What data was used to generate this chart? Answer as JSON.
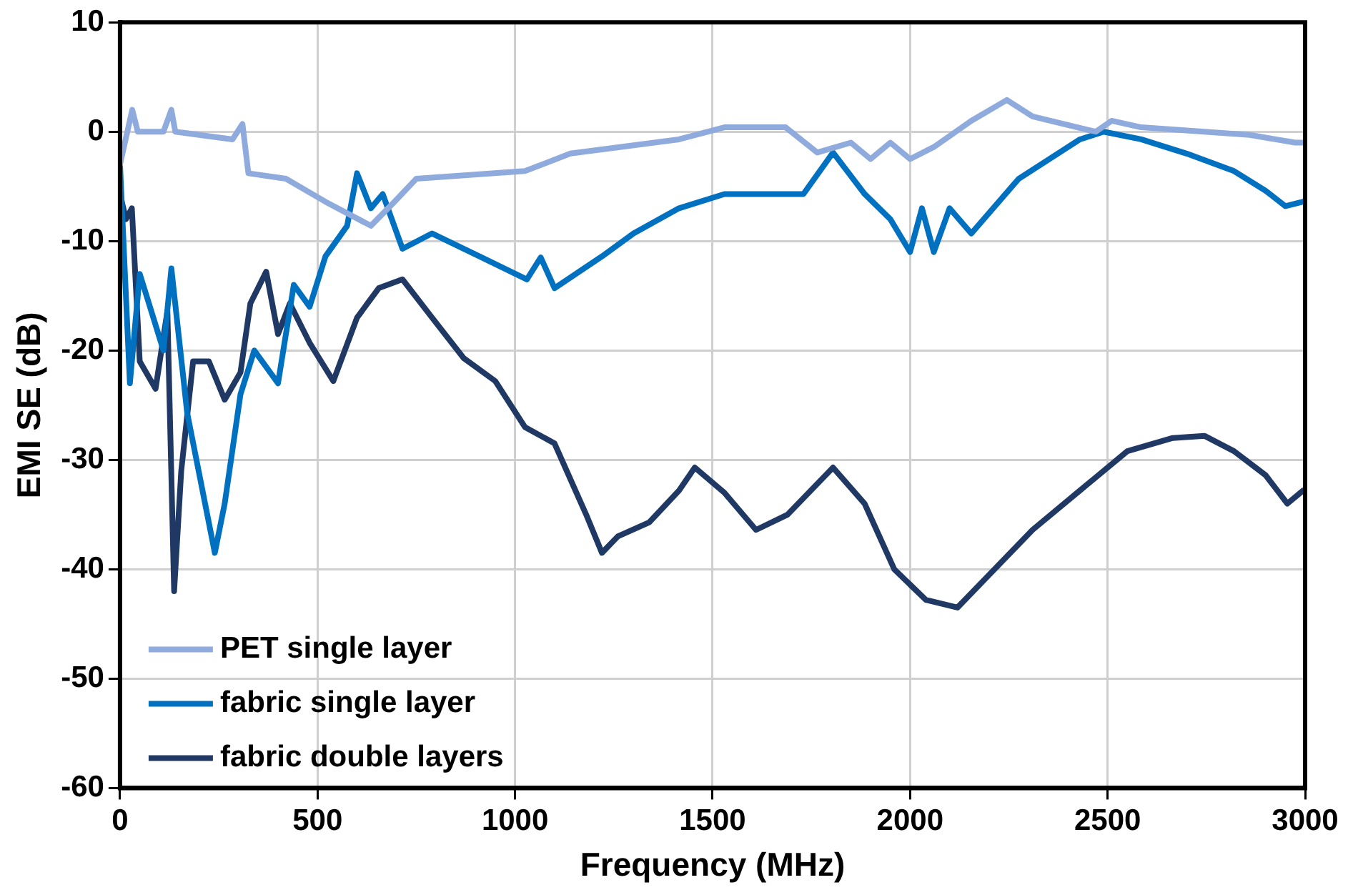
{
  "chart_data": {
    "type": "line",
    "xlabel": "Frequency (MHz)",
    "ylabel": "EMI SE (dB)",
    "xlim": [
      0,
      3000
    ],
    "xticks": [
      0,
      500,
      1000,
      1500,
      2000,
      2500,
      3000
    ],
    "ylim": [
      -60,
      10
    ],
    "yticks": [
      -60,
      -50,
      -40,
      -30,
      -20,
      -10,
      0,
      10
    ],
    "grid": true,
    "legend": "bottom left",
    "marker": "none",
    "line_style": "solid",
    "series": [
      {
        "name": "PET single layer",
        "color": "#8faadc",
        "x": [
          0,
          31,
          45,
          110,
          130,
          140,
          285,
          310,
          325,
          420,
          520,
          635,
          695,
          750,
          1025,
          1140,
          1415,
          1530,
          1685,
          1765,
          1850,
          1900,
          1950,
          2000,
          2060,
          2155,
          2245,
          2310,
          2470,
          2510,
          2585,
          2860,
          2975,
          3000
        ],
        "values": [
          -3,
          2,
          0,
          0,
          2,
          0,
          -0.7,
          0.7,
          -3.8,
          -4.3,
          -6.4,
          -8.6,
          -6.4,
          -4.3,
          -3.6,
          -2,
          -0.7,
          0.4,
          0.4,
          -1.9,
          -1,
          -2.5,
          -1,
          -2.5,
          -1.4,
          1,
          2.9,
          1.4,
          0,
          1,
          0.4,
          -0.3,
          -1,
          -1
        ]
      },
      {
        "name": "fabric single layer",
        "color": "#0070c0",
        "x": [
          0,
          25,
          50,
          110,
          130,
          170,
          240,
          265,
          305,
          340,
          400,
          440,
          480,
          520,
          575,
          600,
          635,
          665,
          715,
          790,
          910,
          1030,
          1065,
          1100,
          1220,
          1300,
          1415,
          1530,
          1730,
          1805,
          1885,
          1950,
          2000,
          2030,
          2060,
          2100,
          2155,
          2275,
          2430,
          2490,
          2585,
          2700,
          2820,
          2900,
          2950,
          2995
        ],
        "values": [
          -3,
          -23,
          -13,
          -20,
          -12.5,
          -25.7,
          -38.5,
          -34,
          -24,
          -20,
          -23,
          -14,
          -16,
          -11.4,
          -8.6,
          -3.8,
          -7,
          -5.7,
          -10.7,
          -9.3,
          -11.4,
          -13.5,
          -11.5,
          -14.3,
          -11.4,
          -9.3,
          -7,
          -5.7,
          -5.7,
          -1.9,
          -5.7,
          -8,
          -11,
          -7,
          -11,
          -7,
          -9.3,
          -4.3,
          -0.7,
          0,
          -0.7,
          -2,
          -3.6,
          -5.4,
          -6.8,
          -6.4
        ]
      },
      {
        "name": "fabric double layers",
        "color": "#1f3864",
        "x": [
          0,
          15,
          30,
          50,
          90,
          120,
          137,
          155,
          185,
          225,
          265,
          305,
          330,
          370,
          400,
          430,
          480,
          540,
          600,
          655,
          715,
          790,
          870,
          950,
          1025,
          1100,
          1180,
          1220,
          1260,
          1340,
          1415,
          1455,
          1530,
          1610,
          1690,
          1805,
          1885,
          1960,
          2040,
          2120,
          2195,
          2310,
          2430,
          2550,
          2665,
          2745,
          2820,
          2900,
          2955,
          2995
        ],
        "values": [
          -5.7,
          -8,
          -7,
          -21,
          -23.5,
          -16.4,
          -42,
          -31,
          -21,
          -21,
          -24.5,
          -22,
          -15.7,
          -12.8,
          -18.5,
          -15.7,
          -19.3,
          -22.8,
          -17,
          -14.3,
          -13.5,
          -17,
          -20.7,
          -22.8,
          -27,
          -28.5,
          -35,
          -38.5,
          -37,
          -35.7,
          -32.8,
          -30.7,
          -33,
          -36.4,
          -35,
          -30.7,
          -34,
          -40,
          -42.8,
          -43.5,
          -40.7,
          -36.4,
          -32.8,
          -29.2,
          -28,
          -27.8,
          -29.2,
          -31.4,
          -34,
          -32.8
        ]
      }
    ]
  }
}
